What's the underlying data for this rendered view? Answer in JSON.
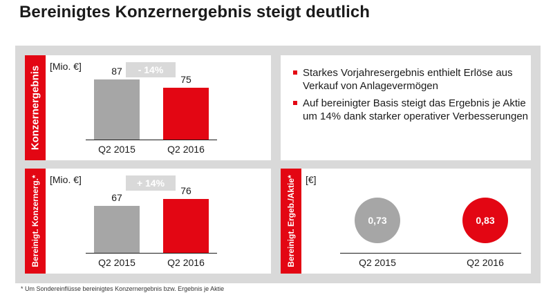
{
  "title": "Bereinigtes Konzernergebnis steigt deutlich",
  "colors": {
    "accent": "#e30613",
    "grey": "#a6a6a6",
    "panel_bg": "#d9d9d9"
  },
  "panels": {
    "top_left": {
      "side_label": "Konzernergebnis",
      "unit": "[Mio. €]",
      "badge": "- 14%"
    },
    "bottom_left": {
      "side_label": "Bereinigt. Konzernerg.*",
      "unit": "[Mio. €]",
      "badge": "+ 14%"
    },
    "bottom_right": {
      "side_label": "Bereinigt. Ergeb./Aktie*",
      "unit": "[€]"
    }
  },
  "bullets": [
    "Starkes Vorjahresergebnis enthielt Erlöse aus Verkauf von Anlagevermögen",
    "Auf bereinigter Basis steigt das Ergebnis je Aktie um 14% dank starker operativer Verbesserungen"
  ],
  "footnote": "* Um Sondereinflüsse bereinigtes Konzernergebnis bzw. Ergebnis je Aktie",
  "chart_data": [
    {
      "type": "bar",
      "title": "Konzernergebnis",
      "ylabel": "[Mio. €]",
      "categories": [
        "Q2 2015",
        "Q2 2016"
      ],
      "values": [
        87,
        75
      ],
      "value_labels": [
        "87",
        "75"
      ],
      "colors": [
        "#a6a6a6",
        "#e30613"
      ],
      "annotation": "- 14%"
    },
    {
      "type": "bar",
      "title": "Bereinigt. Konzernerg.*",
      "ylabel": "[Mio. €]",
      "categories": [
        "Q2 2015",
        "Q2 2016"
      ],
      "values": [
        67,
        76
      ],
      "value_labels": [
        "67",
        "76"
      ],
      "colors": [
        "#a6a6a6",
        "#e30613"
      ],
      "annotation": "+ 14%"
    },
    {
      "type": "scatter",
      "title": "Bereinigt. Ergeb./Aktie*",
      "ylabel": "[€]",
      "categories": [
        "Q2 2015",
        "Q2 2016"
      ],
      "values": [
        0.73,
        0.83
      ],
      "value_labels": [
        "0,73",
        "0,83"
      ],
      "colors": [
        "#a6a6a6",
        "#e30613"
      ]
    }
  ]
}
